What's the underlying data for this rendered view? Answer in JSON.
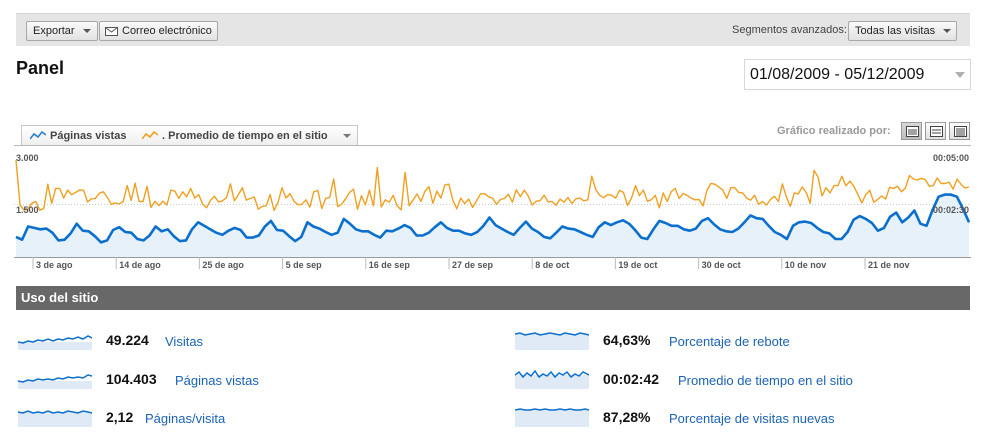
{
  "toolbar": {
    "export_label": "Exportar",
    "email_label": "Correo electrónico",
    "segments_label": "Segmentos avanzados:",
    "segments_value": "Todas las visitas"
  },
  "page": {
    "title": "Panel",
    "date_range": "01/08/2009 - 05/12/2009"
  },
  "graph": {
    "series1_label": "Páginas vistas",
    "series2_label": ". Promedio de tiempo en el sitio",
    "graph_by_label": "Gráfico realizado por:"
  },
  "chart_data": {
    "type": "line",
    "x_ticks": [
      "3 de ago",
      "14 de ago",
      "25 de ago",
      "5 de sep",
      "16 de sep",
      "27 de sep",
      "8 de oct",
      "19 de oct",
      "30 de oct",
      "10 de nov",
      "21 de nov"
    ],
    "left_axis_ticks": [
      "3.000",
      "1.500"
    ],
    "right_axis_ticks": [
      "00:05:00",
      "00:02:30"
    ],
    "colors": {
      "pageviews": "#0b6fcd",
      "pageviews_fill": "#e6f1fa",
      "avg_time": "#f0a020",
      "grid": "#cccccc"
    },
    "series": [
      {
        "name": "Páginas vistas",
        "axis": "left",
        "values": [
          580,
          500,
          880,
          840,
          800,
          820,
          700,
          480,
          500,
          680,
          960,
          760,
          740,
          600,
          420,
          480,
          780,
          860,
          720,
          700,
          520,
          480,
          620,
          880,
          740,
          800,
          600,
          460,
          480,
          800,
          1000,
          900,
          800,
          700,
          640,
          760,
          840,
          780,
          560,
          560,
          620,
          880,
          1040,
          780,
          760,
          600,
          460,
          580,
          1000,
          880,
          820,
          720,
          640,
          700,
          1100,
          960,
          800,
          740,
          740,
          640,
          560,
          760,
          740,
          820,
          920,
          840,
          620,
          620,
          700,
          860,
          1000,
          840,
          760,
          760,
          680,
          640,
          720,
          900,
          1140,
          920,
          820,
          720,
          640,
          840,
          1020,
          820,
          720,
          580,
          540,
          700,
          880,
          820,
          800,
          720,
          640,
          580,
          860,
          1000,
          920,
          1000,
          1060,
          960,
          780,
          560,
          520,
          800,
          1040,
          980,
          900,
          900,
          800,
          760,
          820,
          1040,
          1120,
          940,
          800,
          740,
          720,
          820,
          1000,
          1200,
          1120,
          1100,
          900,
          720,
          640,
          520,
          900,
          1000,
          1020,
          980,
          840,
          720,
          680,
          520,
          520,
          720,
          1080,
          1180,
          1100,
          980,
          760,
          840,
          1160,
          1280,
          1000,
          1140,
          1340,
          960,
          900,
          1360,
          1740,
          1800,
          1800,
          1740,
          1400,
          1000
        ]
      },
      {
        "name": ". Promedio de tiempo en el sitio",
        "axis": "right",
        "values": [
          [
            0,
            279
          ],
          [
            1,
            151
          ],
          [
            2,
            135
          ],
          [
            3,
            138
          ],
          [
            4,
            155
          ],
          [
            5,
            160
          ],
          [
            6,
            135
          ],
          [
            7,
            140
          ],
          [
            8,
            210
          ],
          [
            9,
            155
          ],
          [
            10,
            198
          ],
          [
            11,
            198
          ],
          [
            12,
            170
          ],
          [
            13,
            193
          ],
          [
            14,
            180
          ],
          [
            15,
            186
          ],
          [
            16,
            193
          ],
          [
            17,
            193
          ],
          [
            18,
            159
          ],
          [
            19,
            168
          ],
          [
            20,
            169
          ],
          [
            21,
            184
          ],
          [
            22,
            188
          ],
          [
            23,
            172
          ],
          [
            24,
            152
          ],
          [
            25,
            156
          ],
          [
            26,
            153
          ],
          [
            27,
            160
          ],
          [
            28,
            206
          ],
          [
            29,
            163
          ],
          [
            30,
            213
          ],
          [
            31,
            160
          ],
          [
            32,
            160
          ],
          [
            33,
            204
          ],
          [
            34,
            143
          ],
          [
            35,
            161
          ],
          [
            36,
            148
          ],
          [
            37,
            161
          ],
          [
            38,
            150
          ],
          [
            39,
            193
          ],
          [
            40,
            190
          ],
          [
            41,
            169
          ],
          [
            42,
            188
          ],
          [
            43,
            174
          ],
          [
            44,
            198
          ],
          [
            45,
            170
          ],
          [
            46,
            180
          ],
          [
            47,
            153
          ],
          [
            48,
            142
          ],
          [
            49,
            164
          ],
          [
            50,
            175
          ],
          [
            51,
            159
          ],
          [
            52,
            162
          ],
          [
            53,
            171
          ],
          [
            54,
            211
          ],
          [
            55,
            162
          ],
          [
            56,
            180
          ],
          [
            57,
            200
          ],
          [
            58,
            164
          ],
          [
            59,
            169
          ],
          [
            60,
            173
          ],
          [
            61,
            138
          ],
          [
            62,
            146
          ],
          [
            63,
            148
          ],
          [
            64,
            180
          ],
          [
            65,
            134
          ],
          [
            66,
            158
          ],
          [
            67,
            200
          ],
          [
            68,
            170
          ],
          [
            69,
            183
          ],
          [
            70,
            161
          ],
          [
            71,
            151
          ],
          [
            72,
            152
          ],
          [
            73,
            165
          ],
          [
            74,
            144
          ],
          [
            75,
            188
          ],
          [
            76,
            192
          ],
          [
            77,
            140
          ],
          [
            78,
            169
          ],
          [
            79,
            172
          ],
          [
            80,
            225
          ],
          [
            81,
            145
          ],
          [
            82,
            152
          ],
          [
            83,
            168
          ],
          [
            84,
            186
          ],
          [
            85,
            196
          ],
          [
            86,
            138
          ],
          [
            87,
            177
          ],
          [
            88,
            150
          ],
          [
            89,
            193
          ],
          [
            90,
            147
          ],
          [
            91,
            258
          ],
          [
            92,
            144
          ],
          [
            93,
            165
          ],
          [
            94,
            158
          ],
          [
            95,
            178
          ],
          [
            96,
            147
          ],
          [
            97,
            136
          ],
          [
            98,
            244
          ],
          [
            99,
            148
          ],
          [
            100,
            165
          ],
          [
            101,
            182
          ],
          [
            102,
            160
          ],
          [
            103,
            190
          ],
          [
            104,
            203
          ],
          [
            105,
            155
          ],
          [
            106,
            190
          ],
          [
            107,
            170
          ],
          [
            108,
            208
          ],
          [
            109,
            210
          ],
          [
            110,
            164
          ],
          [
            111,
            139
          ],
          [
            112,
            170
          ],
          [
            113,
            154
          ],
          [
            114,
            167
          ],
          [
            115,
            143
          ],
          [
            116,
            162
          ],
          [
            117,
            182
          ],
          [
            118,
            183
          ],
          [
            119,
            174
          ],
          [
            120,
            170
          ],
          [
            121,
            152
          ],
          [
            122,
            166
          ],
          [
            123,
            169
          ],
          [
            124,
            181
          ],
          [
            125,
            158
          ],
          [
            126,
            194
          ],
          [
            127,
            174
          ],
          [
            128,
            193
          ],
          [
            129,
            176
          ],
          [
            130,
            150
          ],
          [
            131,
            161
          ],
          [
            132,
            163
          ],
          [
            133,
            178
          ],
          [
            134,
            159
          ],
          [
            135,
            160
          ],
          [
            136,
            149
          ],
          [
            137,
            167
          ],
          [
            138,
            158
          ],
          [
            139,
            172
          ],
          [
            140,
            154
          ],
          [
            141,
            168
          ],
          [
            142,
            170
          ],
          [
            143,
            162
          ],
          [
            144,
            165
          ],
          [
            145,
            233
          ],
          [
            146,
            195
          ],
          [
            147,
            178
          ],
          [
            148,
            171
          ],
          [
            149,
            180
          ],
          [
            150,
            178
          ],
          [
            151,
            170
          ],
          [
            152,
            192
          ],
          [
            153,
            186
          ],
          [
            154,
            149
          ],
          [
            155,
            170
          ],
          [
            156,
            206
          ],
          [
            157,
            177
          ],
          [
            158,
            193
          ],
          [
            159,
            161
          ],
          [
            160,
            165
          ],
          [
            161,
            178
          ],
          [
            162,
            142
          ],
          [
            163,
            185
          ],
          [
            164,
            160
          ],
          [
            165,
            188
          ],
          [
            166,
            198
          ],
          [
            167,
            169
          ],
          [
            168,
            183
          ],
          [
            169,
            178
          ],
          [
            170,
            170
          ],
          [
            171,
            165
          ],
          [
            172,
            166
          ],
          [
            173,
            147
          ],
          [
            174,
            192
          ],
          [
            175,
            212
          ],
          [
            176,
            210
          ],
          [
            177,
            202
          ],
          [
            178,
            193
          ],
          [
            179,
            169
          ],
          [
            180,
            200
          ],
          [
            181,
            200
          ],
          [
            182,
            186
          ],
          [
            183,
            185
          ],
          [
            184,
            170
          ],
          [
            185,
            164
          ],
          [
            186,
            178
          ],
          [
            187,
            152
          ],
          [
            188,
            160
          ],
          [
            189,
            150
          ],
          [
            190,
            166
          ],
          [
            191,
            175
          ],
          [
            192,
            160
          ],
          [
            193,
            211
          ],
          [
            194,
            174
          ],
          [
            195,
            146
          ],
          [
            196,
            185
          ],
          [
            197,
            182
          ],
          [
            198,
            202
          ],
          [
            199,
            186
          ],
          [
            200,
            155
          ],
          [
            201,
            250
          ],
          [
            202,
            230
          ],
          [
            203,
            176
          ],
          [
            204,
            200
          ],
          [
            205,
            185
          ],
          [
            206,
            206
          ],
          [
            207,
            206
          ],
          [
            208,
            233
          ],
          [
            209,
            205
          ],
          [
            210,
            219
          ],
          [
            211,
            204
          ],
          [
            212,
            181
          ],
          [
            213,
            156
          ],
          [
            214,
            180
          ],
          [
            215,
            192
          ],
          [
            216,
            158
          ],
          [
            217,
            166
          ],
          [
            218,
            176
          ],
          [
            219,
            167
          ],
          [
            220,
            201
          ],
          [
            221,
            198
          ],
          [
            222,
            204
          ],
          [
            223,
            188
          ],
          [
            224,
            200
          ],
          [
            225,
            235
          ],
          [
            226,
            225
          ],
          [
            227,
            222
          ],
          [
            228,
            227
          ],
          [
            229,
            223
          ],
          [
            230,
            204
          ],
          [
            231,
            206
          ],
          [
            232,
            228
          ],
          [
            233,
            212
          ],
          [
            234,
            212
          ],
          [
            235,
            216
          ],
          [
            236,
            196
          ],
          [
            237,
            225
          ],
          [
            238,
            209
          ],
          [
            239,
            199
          ],
          [
            240,
            202
          ]
        ]
      }
    ]
  },
  "usage": {
    "header": "Uso del sitio",
    "metrics": [
      {
        "value": "49.224",
        "label": "Visitas"
      },
      {
        "value": "104.403",
        "label": "Páginas vistas"
      },
      {
        "value": "2,12",
        "label": "Páginas/visita"
      },
      {
        "value": "64,63%",
        "label": "Porcentaje de rebote"
      },
      {
        "value": "00:02:42",
        "label": "Promedio de tiempo en el sitio"
      },
      {
        "value": "87,28%",
        "label": "Porcentaje de visitas nuevas"
      }
    ]
  }
}
